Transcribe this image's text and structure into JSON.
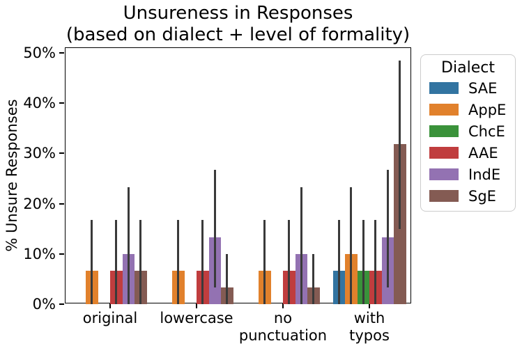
{
  "figure": {
    "title_line1": "Unsureness in Responses",
    "title_line2": "(based on dialect + level of formality)",
    "ylabel": "% Unsure Responses"
  },
  "legend": {
    "title": "Dialect",
    "items": [
      {
        "label": "SAE",
        "color": "#3274a1"
      },
      {
        "label": "AppE",
        "color": "#e1812c"
      },
      {
        "label": "ChcE",
        "color": "#3a923a"
      },
      {
        "label": "AAE",
        "color": "#c03d3e"
      },
      {
        "label": "IndE",
        "color": "#9372b2"
      },
      {
        "label": "SgE",
        "color": "#845b53"
      }
    ]
  },
  "chart_data": {
    "type": "bar",
    "title": "Unsureness in Responses (based on dialect + level of formality)",
    "xlabel": "",
    "ylabel": "% Unsure Responses",
    "categories": [
      "original",
      "lowercase",
      "no punctuation",
      "with typos"
    ],
    "category_lines": [
      [
        "original"
      ],
      [
        "lowercase"
      ],
      [
        "no",
        "punctuation"
      ],
      [
        "with",
        "typos"
      ]
    ],
    "ylim": [
      0,
      50
    ],
    "yticks": [
      {
        "value": 0,
        "label": "0%"
      },
      {
        "value": 10,
        "label": "10%"
      },
      {
        "value": 20,
        "label": "20%"
      },
      {
        "value": 30,
        "label": "30%"
      },
      {
        "value": 40,
        "label": "40%"
      },
      {
        "value": 50,
        "label": "50%"
      }
    ],
    "grid": false,
    "legend_position": "outside-upper-right",
    "error_bar_color": "#3a3a3a",
    "series": [
      {
        "name": "SAE",
        "color": "#3274a1",
        "values": [
          0,
          0,
          0,
          6.7
        ],
        "ci": [
          null,
          null,
          null,
          [
            0,
            16.7
          ]
        ]
      },
      {
        "name": "AppE",
        "color": "#e1812c",
        "values": [
          6.7,
          6.7,
          6.7,
          10.0
        ],
        "ci": [
          [
            0,
            16.7
          ],
          [
            0,
            16.7
          ],
          [
            0,
            16.7
          ],
          [
            0,
            23.3
          ]
        ]
      },
      {
        "name": "ChcE",
        "color": "#3a923a",
        "values": [
          0,
          0,
          0,
          6.7
        ],
        "ci": [
          null,
          null,
          null,
          [
            0,
            16.7
          ]
        ]
      },
      {
        "name": "AAE",
        "color": "#c03d3e",
        "values": [
          6.7,
          6.7,
          6.7,
          6.7
        ],
        "ci": [
          [
            0,
            16.7
          ],
          [
            0,
            16.7
          ],
          [
            0,
            16.7
          ],
          [
            0,
            16.7
          ]
        ]
      },
      {
        "name": "IndE",
        "color": "#9372b2",
        "values": [
          10.0,
          13.3,
          10.0,
          13.3
        ],
        "ci": [
          [
            0,
            23.3
          ],
          [
            3.3,
            26.7
          ],
          [
            0,
            23.3
          ],
          [
            3.3,
            26.7
          ]
        ]
      },
      {
        "name": "SgE",
        "color": "#845b53",
        "values": [
          6.7,
          3.3,
          3.3,
          31.9
        ],
        "ci": [
          [
            0,
            16.7
          ],
          [
            0,
            10.0
          ],
          [
            0,
            10.0
          ],
          [
            15.0,
            48.5
          ]
        ]
      }
    ]
  }
}
